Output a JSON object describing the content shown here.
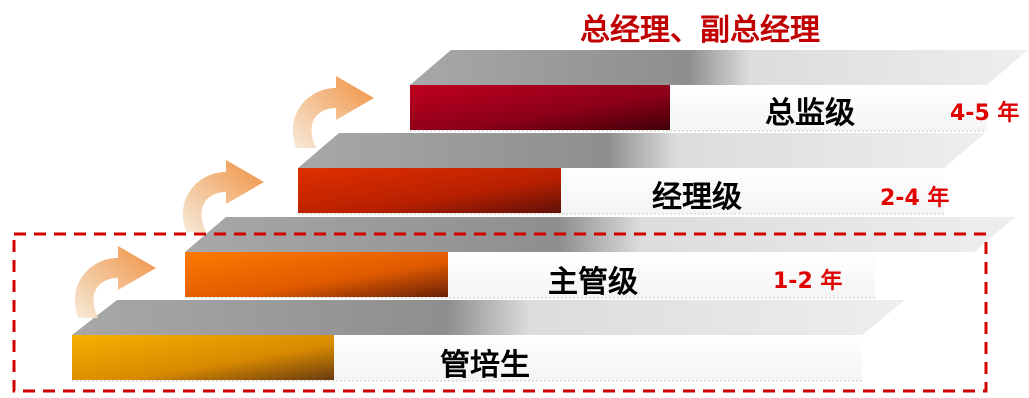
{
  "top_title": "总经理、副总经理",
  "levels": [
    {
      "label": "管培生",
      "years": ""
    },
    {
      "label": "主管级",
      "years": "1-2 年"
    },
    {
      "label": "经理级",
      "years": "2-4 年"
    },
    {
      "label": "总监级",
      "years": "4-5 年"
    }
  ],
  "colors": {
    "dashed_border": "#d00000",
    "years_text": "#e00000",
    "top_title": "#c00000",
    "step_top_gray": "#9a9a9a",
    "step_top_light": "#e2e2e2",
    "arrow": "#f0a050",
    "bar_1": [
      "#f7b000",
      "#6a3a10"
    ],
    "bar_2": [
      "#ff7a00",
      "#6a2008"
    ],
    "bar_3": [
      "#e03000",
      "#601008"
    ],
    "bar_4": [
      "#c00020",
      "#400008"
    ]
  },
  "arrow_icon": "curved-up-arrow-icon"
}
